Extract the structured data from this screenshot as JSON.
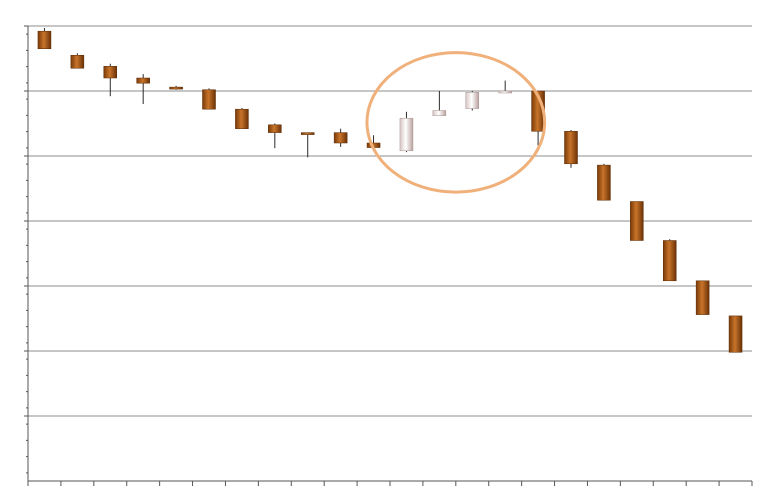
{
  "chart_data": {
    "type": "candlestick",
    "title": "",
    "xlabel": "",
    "ylabel": "",
    "ylim": [
      0,
      7
    ],
    "y_gridlines": [
      1,
      2,
      3,
      4,
      5,
      6,
      7
    ],
    "grid": true,
    "legend": "none",
    "colors": {
      "down_fill_dark": "#7a3a08",
      "down_fill_light": "#c8742a",
      "up_fill_light": "#ffffff",
      "up_fill_dark": "#c9b3b0",
      "wick": "#2a2a2a",
      "gridline": "#8c8c8c",
      "axis": "#555555",
      "highlight_ellipse": "#f0b07a"
    },
    "candles": [
      {
        "open": 6.92,
        "close": 6.65,
        "high": 6.97,
        "low": 6.65
      },
      {
        "open": 6.55,
        "close": 6.35,
        "high": 6.58,
        "low": 6.35
      },
      {
        "open": 6.38,
        "close": 6.2,
        "high": 6.42,
        "low": 5.92
      },
      {
        "open": 6.2,
        "close": 6.12,
        "high": 6.26,
        "low": 5.8
      },
      {
        "open": 6.06,
        "close": 6.04,
        "high": 6.08,
        "low": 6.02
      },
      {
        "open": 6.02,
        "close": 5.72,
        "high": 6.04,
        "low": 5.72
      },
      {
        "open": 5.72,
        "close": 5.42,
        "high": 5.74,
        "low": 5.42
      },
      {
        "open": 5.48,
        "close": 5.36,
        "high": 5.5,
        "low": 5.12
      },
      {
        "open": 5.36,
        "close": 5.34,
        "high": 5.36,
        "low": 4.98
      },
      {
        "open": 5.36,
        "close": 5.2,
        "high": 5.42,
        "low": 5.14
      },
      {
        "open": 5.2,
        "close": 5.13,
        "high": 5.32,
        "low": 5.13
      },
      {
        "open": 5.08,
        "close": 5.58,
        "high": 5.68,
        "low": 5.06
      },
      {
        "open": 5.62,
        "close": 5.7,
        "high": 6.0,
        "low": 5.62
      },
      {
        "open": 5.73,
        "close": 5.98,
        "high": 6.0,
        "low": 5.7
      },
      {
        "open": 5.98,
        "close": 6.0,
        "high": 6.16,
        "low": 5.97
      },
      {
        "open": 6.0,
        "close": 5.38,
        "high": 6.0,
        "low": 5.16
      },
      {
        "open": 5.38,
        "close": 4.88,
        "high": 5.4,
        "low": 4.82
      },
      {
        "open": 4.86,
        "close": 4.32,
        "high": 4.88,
        "low": 4.32
      },
      {
        "open": 4.3,
        "close": 3.7,
        "high": 4.3,
        "low": 3.7
      },
      {
        "open": 3.7,
        "close": 3.08,
        "high": 3.72,
        "low": 3.08
      },
      {
        "open": 3.08,
        "close": 2.56,
        "high": 3.08,
        "low": 2.56
      },
      {
        "open": 2.54,
        "close": 1.98,
        "high": 2.54,
        "low": 1.98
      }
    ],
    "annotations": [
      {
        "type": "ellipse",
        "encloses_candles": [
          11,
          12,
          13,
          14
        ]
      }
    ]
  }
}
